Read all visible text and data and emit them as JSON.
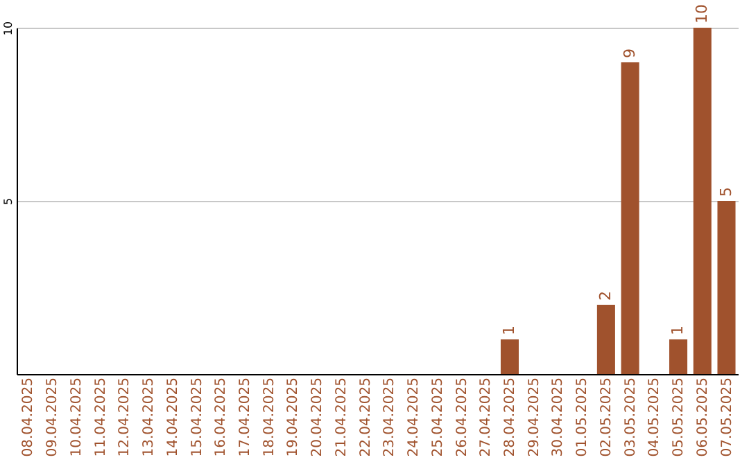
{
  "chart_data": {
    "type": "bar",
    "categories": [
      "08.04.2025",
      "09.04.2025",
      "10.04.2025",
      "11.04.2025",
      "12.04.2025",
      "13.04.2025",
      "14.04.2025",
      "15.04.2025",
      "16.04.2025",
      "17.04.2025",
      "18.04.2025",
      "19.04.2025",
      "20.04.2025",
      "21.04.2025",
      "22.04.2025",
      "23.04.2025",
      "24.04.2025",
      "25.04.2025",
      "26.04.2025",
      "27.04.2025",
      "28.04.2025",
      "29.04.2025",
      "30.04.2025",
      "01.05.2025",
      "02.05.2025",
      "03.05.2025",
      "04.05.2025",
      "05.05.2025",
      "06.05.2025",
      "07.05.2025"
    ],
    "values": [
      0,
      0,
      0,
      0,
      0,
      0,
      0,
      0,
      0,
      0,
      0,
      0,
      0,
      0,
      0,
      0,
      0,
      0,
      0,
      0,
      1,
      0,
      0,
      0,
      2,
      9,
      0,
      1,
      10,
      5
    ],
    "value_labels": [
      null,
      null,
      null,
      null,
      null,
      null,
      null,
      null,
      null,
      null,
      null,
      null,
      null,
      null,
      null,
      null,
      null,
      null,
      null,
      null,
      "1",
      null,
      null,
      null,
      "2",
      "9",
      null,
      "1",
      "10",
      "5"
    ],
    "color": "#a0522d",
    "ylim": [
      0,
      10
    ],
    "yticks": [
      5,
      10
    ],
    "grid": "y"
  }
}
